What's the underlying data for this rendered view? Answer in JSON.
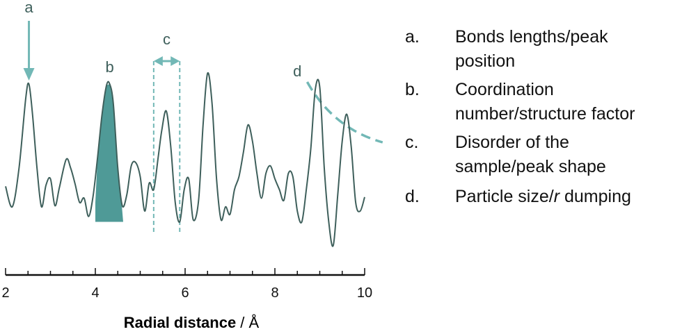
{
  "chart_data": {
    "type": "line",
    "xlabel_bold": "Radial distance",
    "xlabel_unit": " / Å",
    "xlim": [
      2,
      10
    ],
    "xticks": [
      "2",
      "4",
      "6",
      "8",
      "10"
    ],
    "series": [
      {
        "x": [
          2.0,
          2.15,
          2.3,
          2.45,
          2.52,
          2.6,
          2.7,
          2.8,
          2.9,
          3.0,
          3.1,
          3.2,
          3.35,
          3.45,
          3.55,
          3.65,
          3.75,
          3.85,
          3.95,
          4.05,
          4.15,
          4.25,
          4.32,
          4.4,
          4.5,
          4.6,
          4.7,
          4.8,
          4.9,
          5.0,
          5.1,
          5.2,
          5.3,
          5.4,
          5.48,
          5.58,
          5.68,
          5.78,
          5.88,
          5.98,
          6.08,
          6.18,
          6.3,
          6.4,
          6.5,
          6.6,
          6.7,
          6.8,
          6.9,
          7.0,
          7.1,
          7.2,
          7.3,
          7.4,
          7.5,
          7.6,
          7.7,
          7.8,
          7.9,
          8.0,
          8.1,
          8.2,
          8.3,
          8.4,
          8.5,
          8.6,
          8.7,
          8.8,
          8.9,
          9.0,
          9.1,
          9.2,
          9.3,
          9.4,
          9.5,
          9.6,
          9.7,
          9.8,
          9.9,
          10.0
        ],
        "y": [
          0.03,
          -0.16,
          0.2,
          0.85,
          0.98,
          0.7,
          0.2,
          -0.16,
          0.04,
          0.1,
          -0.15,
          0.02,
          0.28,
          0.2,
          0.05,
          -0.12,
          -0.08,
          -0.25,
          -0.06,
          0.3,
          0.7,
          0.97,
          0.98,
          0.8,
          0.2,
          -0.15,
          -0.05,
          0.22,
          0.25,
          0.12,
          -0.2,
          0.06,
          0.0,
          0.3,
          0.55,
          0.73,
          0.4,
          -0.12,
          -0.3,
          0.0,
          0.1,
          -0.28,
          -0.1,
          0.6,
          1.08,
          0.8,
          0.1,
          -0.28,
          -0.16,
          -0.23,
          0.0,
          0.12,
          0.35,
          0.6,
          0.45,
          0.15,
          -0.08,
          0.15,
          0.22,
          0.1,
          0.0,
          -0.1,
          0.15,
          0.12,
          -0.2,
          -0.3,
          0.0,
          0.38,
          0.93,
          0.95,
          0.2,
          -0.3,
          -0.52,
          -0.05,
          0.45,
          0.7,
          0.4,
          -0.12,
          -0.2,
          -0.07
        ]
      }
    ],
    "annotations": [
      "a",
      "b",
      "c",
      "d"
    ]
  },
  "legend": [
    {
      "key": "a.",
      "text": "Bonds lengths/peak\nposition"
    },
    {
      "key": "b.",
      "text": "Coordination\nnumber/structure factor"
    },
    {
      "key": "c.",
      "text": "Disorder of the\nsample/peak shape"
    },
    {
      "key": "d.",
      "text_pre": "Particle size/",
      "text_italic": "r",
      "text_post": " dumping"
    }
  ],
  "colors": {
    "line": "#3e5f5b",
    "accent": "#72b8b6",
    "fill": "#4f9a97",
    "axis": "#111111"
  }
}
